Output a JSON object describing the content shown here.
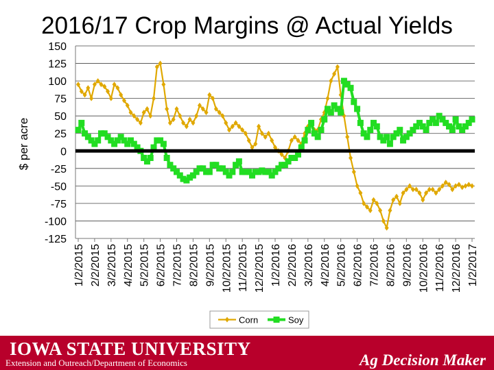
{
  "footer": {
    "university": "IOWA STATE UNIVERSITY",
    "department": "Extension and Outreach/Department of Economics",
    "brand": "Ag Decision Maker",
    "background_color": "#b8002b"
  },
  "chart_data": {
    "type": "line",
    "title": "2016/17 Crop Margins @ Actual Yields",
    "ylabel": "$ per acre",
    "xlabel": "",
    "ylim": [
      -125,
      150
    ],
    "yticks": [
      150,
      125,
      100,
      75,
      50,
      25,
      0,
      -25,
      -50,
      -75,
      -100,
      -125
    ],
    "ytick_labels": [
      "150",
      "125",
      "100",
      "75",
      "50",
      "25",
      "0",
      "-25",
      "-50",
      "-75",
      "-100",
      "-125"
    ],
    "categories": [
      "1/2/2015",
      "2/2/2015",
      "3/2/2015",
      "4/2/2015",
      "5/2/2015",
      "6/2/2015",
      "7/2/2015",
      "8/2/2015",
      "9/2/2015",
      "10/2/2015",
      "11/2/2015",
      "12/2/2015",
      "1/2/2016",
      "2/2/2016",
      "3/2/2016",
      "4/2/2016",
      "5/2/2016",
      "6/2/2016",
      "7/2/2016",
      "8/2/2016",
      "9/2/2016",
      "10/2/2016",
      "11/2/2016",
      "12/2/2016",
      "1/2/2017"
    ],
    "grid": true,
    "zero_line": true,
    "legend": "bottom",
    "series": [
      {
        "name": "Corn",
        "color": "#e0a800",
        "marker": "diamond",
        "x": [
          0,
          0.2,
          0.4,
          0.6,
          0.8,
          1,
          1.2,
          1.4,
          1.6,
          1.8,
          2,
          2.2,
          2.4,
          2.6,
          2.8,
          3,
          3.2,
          3.4,
          3.6,
          3.8,
          4,
          4.2,
          4.4,
          4.6,
          4.8,
          5,
          5.2,
          5.4,
          5.6,
          5.8,
          6,
          6.2,
          6.4,
          6.6,
          6.8,
          7,
          7.2,
          7.4,
          7.6,
          7.8,
          8,
          8.2,
          8.4,
          8.6,
          8.8,
          9,
          9.2,
          9.4,
          9.6,
          9.8,
          10,
          10.2,
          10.4,
          10.6,
          10.8,
          11,
          11.2,
          11.4,
          11.6,
          11.8,
          12,
          12.2,
          12.4,
          12.6,
          12.8,
          13,
          13.2,
          13.4,
          13.6,
          13.8,
          14,
          14.2,
          14.4,
          14.6,
          14.8,
          15,
          15.2,
          15.4,
          15.6,
          15.8,
          16,
          16.2,
          16.4,
          16.6,
          16.8,
          17,
          17.2,
          17.4,
          17.6,
          17.8,
          18,
          18.2,
          18.4,
          18.6,
          18.8,
          19,
          19.2,
          19.4,
          19.6,
          19.8,
          20,
          20.2,
          20.4,
          20.6,
          20.8,
          21,
          21.2,
          21.4,
          21.6,
          21.8,
          22,
          22.2,
          22.4,
          22.6,
          22.8,
          23,
          23.2,
          23.4,
          23.6,
          23.8,
          24
        ],
        "values": [
          95,
          85,
          80,
          90,
          75,
          95,
          100,
          95,
          92,
          85,
          75,
          95,
          90,
          80,
          72,
          65,
          55,
          50,
          45,
          40,
          55,
          60,
          50,
          75,
          120,
          125,
          95,
          60,
          40,
          45,
          60,
          50,
          40,
          35,
          45,
          40,
          50,
          65,
          60,
          55,
          80,
          75,
          60,
          55,
          50,
          40,
          30,
          35,
          40,
          35,
          30,
          25,
          15,
          5,
          10,
          35,
          25,
          20,
          25,
          15,
          5,
          0,
          -5,
          -10,
          0,
          15,
          20,
          15,
          10,
          25,
          35,
          40,
          30,
          30,
          45,
          55,
          75,
          100,
          110,
          120,
          80,
          50,
          20,
          -10,
          -30,
          -50,
          -60,
          -75,
          -80,
          -85,
          -70,
          -75,
          -85,
          -100,
          -110,
          -85,
          -70,
          -65,
          -75,
          -60,
          -55,
          -50,
          -55,
          -55,
          -60,
          -70,
          -60,
          -55,
          -55,
          -60,
          -55,
          -50,
          -45,
          -48,
          -55,
          -50,
          -48,
          -52,
          -50,
          -48,
          -50
        ]
      },
      {
        "name": "Soy",
        "color": "#22dd22",
        "marker": "square",
        "x": [
          0,
          0.2,
          0.4,
          0.6,
          0.8,
          1,
          1.2,
          1.4,
          1.6,
          1.8,
          2,
          2.2,
          2.4,
          2.6,
          2.8,
          3,
          3.2,
          3.4,
          3.6,
          3.8,
          4,
          4.2,
          4.4,
          4.6,
          4.8,
          5,
          5.2,
          5.4,
          5.6,
          5.8,
          6,
          6.2,
          6.4,
          6.6,
          6.8,
          7,
          7.2,
          7.4,
          7.6,
          7.8,
          8,
          8.2,
          8.4,
          8.6,
          8.8,
          9,
          9.2,
          9.4,
          9.6,
          9.8,
          10,
          10.2,
          10.4,
          10.6,
          10.8,
          11,
          11.2,
          11.4,
          11.6,
          11.8,
          12,
          12.2,
          12.4,
          12.6,
          12.8,
          13,
          13.2,
          13.4,
          13.6,
          13.8,
          14,
          14.2,
          14.4,
          14.6,
          14.8,
          15,
          15.2,
          15.4,
          15.6,
          15.8,
          16,
          16.2,
          16.4,
          16.6,
          16.8,
          17,
          17.2,
          17.4,
          17.6,
          17.8,
          18,
          18.2,
          18.4,
          18.6,
          18.8,
          19,
          19.2,
          19.4,
          19.6,
          19.8,
          20,
          20.2,
          20.4,
          20.6,
          20.8,
          21,
          21.2,
          21.4,
          21.6,
          21.8,
          22,
          22.2,
          22.4,
          22.6,
          22.8,
          23,
          23.2,
          23.4,
          23.6,
          23.8,
          24
        ],
        "values": [
          30,
          40,
          25,
          20,
          15,
          10,
          15,
          25,
          25,
          20,
          15,
          10,
          15,
          20,
          15,
          10,
          15,
          10,
          5,
          0,
          -10,
          -15,
          -10,
          5,
          15,
          15,
          10,
          -10,
          -20,
          -25,
          -30,
          -35,
          -40,
          -42,
          -38,
          -35,
          -30,
          -25,
          -25,
          -30,
          -30,
          -20,
          -20,
          -25,
          -25,
          -30,
          -35,
          -30,
          -20,
          -15,
          -30,
          -30,
          -30,
          -35,
          -30,
          -30,
          -28,
          -30,
          -30,
          -35,
          -30,
          -25,
          -20,
          -20,
          -15,
          -10,
          -10,
          -5,
          5,
          15,
          30,
          40,
          25,
          20,
          30,
          45,
          60,
          55,
          65,
          60,
          55,
          100,
          95,
          90,
          70,
          60,
          40,
          25,
          20,
          30,
          40,
          35,
          20,
          15,
          20,
          10,
          20,
          25,
          30,
          15,
          20,
          25,
          30,
          35,
          40,
          35,
          30,
          40,
          45,
          40,
          50,
          45,
          40,
          35,
          30,
          45,
          35,
          30,
          35,
          40,
          45
        ]
      }
    ]
  }
}
